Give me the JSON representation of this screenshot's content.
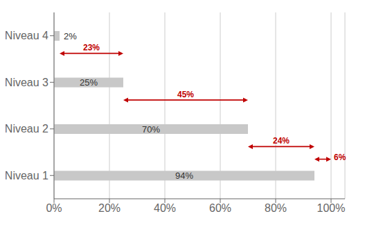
{
  "chart_data": {
    "type": "bar",
    "orientation": "horizontal",
    "categories": [
      "Niveau 1",
      "Niveau 2",
      "Niveau 3",
      "Niveau 4"
    ],
    "values": [
      94,
      70,
      25,
      2
    ],
    "value_labels": [
      "94%",
      "70%",
      "25%",
      "2%"
    ],
    "data_labels": true,
    "color": "#c8c8c8",
    "xlim": [
      0,
      105
    ],
    "xticks": [
      {
        "value": 0,
        "label": "0%"
      },
      {
        "value": 20,
        "label": "20%"
      },
      {
        "value": 40,
        "label": "40%"
      },
      {
        "value": 60,
        "label": "60%"
      },
      {
        "value": 80,
        "label": "80%"
      },
      {
        "value": 100,
        "label": "100%"
      }
    ],
    "grid": true,
    "annotations": [
      {
        "text": "23%",
        "x_start": 2,
        "x_end": 25,
        "category": "Niveau 3",
        "color": "#c00000"
      },
      {
        "text": "45%",
        "x_start": 25,
        "x_end": 70,
        "category": "Niveau 2",
        "color": "#c00000"
      },
      {
        "text": "24%",
        "x_start": 70,
        "x_end": 94,
        "category": "Niveau 1",
        "color": "#c00000"
      },
      {
        "text": "6%",
        "x_start": 94,
        "x_end": 100,
        "category": "Niveau 1",
        "color": "#c00000"
      }
    ]
  }
}
